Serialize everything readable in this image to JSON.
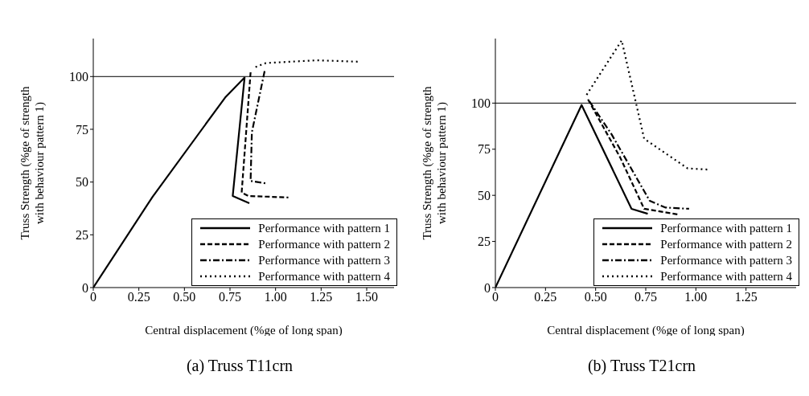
{
  "chart_data": [
    {
      "type": "line",
      "title": "(a) Truss T11crn",
      "xlabel": "Central displacement (%ge of long span)",
      "ylabel": "Truss Strength (%ge of strength with behaviour pattern 1)",
      "xlim": [
        0,
        1.65
      ],
      "ylim": [
        0,
        118
      ],
      "xticks": [
        0,
        {
          "value": 0.25,
          "label": "0.25"
        },
        {
          "value": 0.5,
          "label": "0.50"
        },
        {
          "value": 0.75,
          "label": "0.75"
        },
        {
          "value": 1,
          "label": "1.00"
        },
        {
          "value": 1.25,
          "label": "1.25"
        },
        {
          "value": 1.5,
          "label": "1.50"
        }
      ],
      "yticks": [
        0,
        25,
        50,
        75,
        100
      ],
      "grid": false,
      "legend": "bottom right",
      "marker": "none",
      "ref_lines": [
        {
          "axis": "y",
          "value": 100,
          "color": "#000000"
        }
      ],
      "series": [
        {
          "name": "Performance with pattern 1",
          "color": "#000000",
          "line_style": "solid",
          "x": [
            0,
            0.325,
            0.723,
            0.83,
            0.765,
            0.856
          ],
          "values": [
            0,
            43,
            90,
            99.5,
            43.4,
            40
          ]
        },
        {
          "name": "Performance with pattern 2",
          "color": "#000000",
          "line_style": "dashed",
          "x": [
            0.863,
            0.814,
            0.85,
            1.07
          ],
          "values": [
            102,
            45,
            43.4,
            42.7
          ]
        },
        {
          "name": "Performance with pattern 3",
          "color": "#000000",
          "line_style": "dashdot",
          "x": [
            0.94,
            0.87,
            0.863,
            0.947
          ],
          "values": [
            102.6,
            73.6,
            50.5,
            49.4
          ]
        },
        {
          "name": "Performance with pattern 4",
          "color": "#000000",
          "line_style": "dotted",
          "x": [
            0.89,
            0.947,
            1.226,
            1.464
          ],
          "values": [
            104.5,
            106.4,
            107.7,
            107
          ]
        }
      ]
    },
    {
      "type": "line",
      "title": "(b) Truss T21crn",
      "xlabel": "Central displacement (%ge of long span)",
      "ylabel": "Truss Strength (%ge of strength with behaviour pattern 1)",
      "xlim": [
        0,
        1.5
      ],
      "ylim": [
        0,
        135
      ],
      "xticks": [
        0,
        {
          "value": 0.25,
          "label": "0.25"
        },
        {
          "value": 0.5,
          "label": "0.50"
        },
        {
          "value": 0.75,
          "label": "0.75"
        },
        {
          "value": 1,
          "label": "1.00"
        },
        {
          "value": 1.25,
          "label": "1.25"
        }
      ],
      "yticks": [
        0,
        25,
        50,
        75,
        100
      ],
      "grid": false,
      "legend": "bottom right",
      "marker": "none",
      "ref_lines": [
        {
          "axis": "y",
          "value": 100,
          "color": "#000000"
        }
      ],
      "series": [
        {
          "name": "Performance with pattern 1",
          "color": "#000000",
          "line_style": "solid",
          "x": [
            0,
            0.43,
            0.679,
            0.76
          ],
          "values": [
            0,
            99,
            42.7,
            40
          ]
        },
        {
          "name": "Performance with pattern 2",
          "color": "#000000",
          "line_style": "dashed",
          "x": [
            0.462,
            0.623,
            0.742,
            0.917
          ],
          "values": [
            102,
            70.4,
            42.7,
            39.5
          ]
        },
        {
          "name": "Performance with pattern 3",
          "color": "#000000",
          "line_style": "dashdot",
          "x": [
            0.469,
            0.58,
            0.77,
            0.847,
            0.966
          ],
          "values": [
            101,
            83,
            47,
            43.4,
            42.7
          ]
        },
        {
          "name": "Performance with pattern 4",
          "color": "#000000",
          "line_style": "dotted",
          "x": [
            0.455,
            0.63,
            0.742,
            0.959,
            1.057
          ],
          "values": [
            104.5,
            134,
            80.7,
            64.6,
            64
          ]
        }
      ]
    }
  ]
}
